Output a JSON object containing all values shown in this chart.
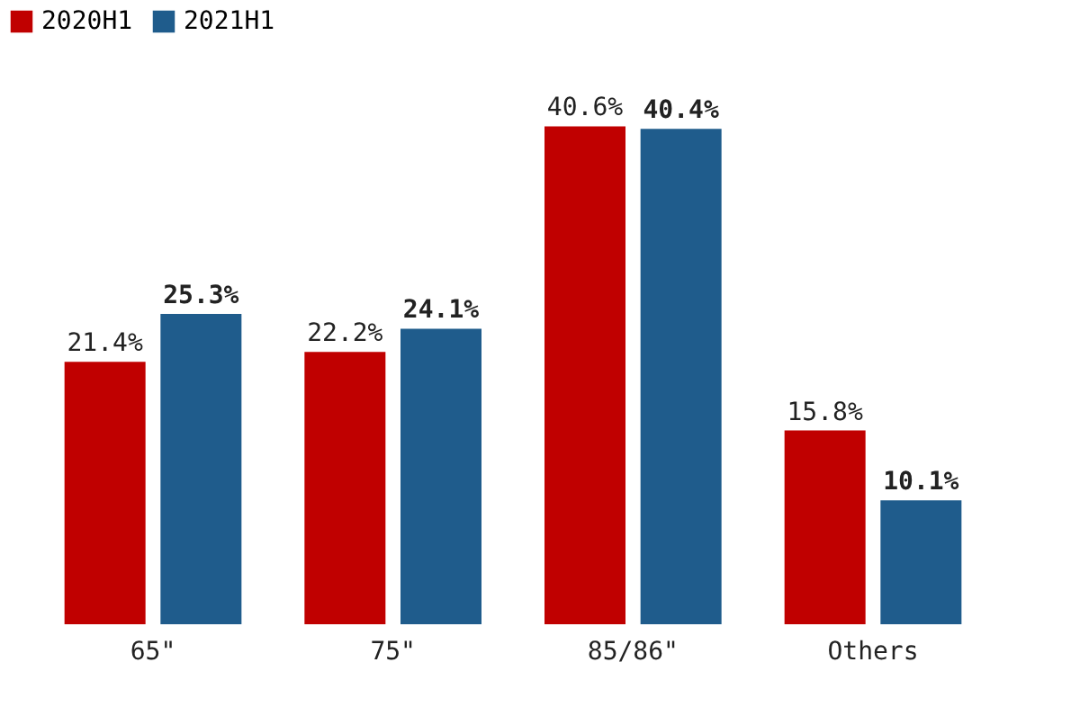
{
  "chart_data": {
    "type": "bar",
    "categories": [
      "65\"",
      "75\"",
      "85/86\"",
      "Others"
    ],
    "series": [
      {
        "name": "2020H1",
        "color": "#c00000",
        "values": [
          21.4,
          22.2,
          40.6,
          15.8
        ],
        "value_labels": [
          "21.4%",
          "22.2%",
          "40.6%",
          "15.8%"
        ]
      },
      {
        "name": "2021H1",
        "color": "#1f5c8c",
        "values": [
          25.3,
          24.1,
          40.4,
          10.1
        ],
        "value_labels": [
          "25.3%",
          "24.1%",
          "40.4%",
          "10.1%"
        ]
      }
    ],
    "legend": "top",
    "grid": false
  }
}
